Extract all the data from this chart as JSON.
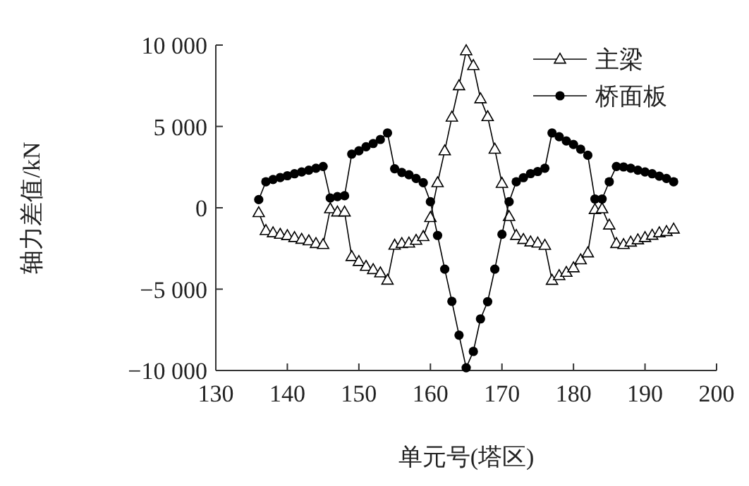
{
  "chart_data": {
    "type": "line",
    "xlabel": "单元号(塔区)",
    "ylabel": "轴力差值/kN",
    "xlim": [
      130,
      200
    ],
    "xticks": [
      130,
      140,
      150,
      160,
      170,
      180,
      190,
      200
    ],
    "ylim": [
      -10000,
      10000
    ],
    "yticks": [
      {
        "value": -10000,
        "label": "−10 000"
      },
      {
        "value": -5000,
        "label": "−5 000"
      },
      {
        "value": 0,
        "label": "0"
      },
      {
        "value": 5000,
        "label": "5 000"
      },
      {
        "value": 10000,
        "label": "10 000"
      }
    ],
    "grid": false,
    "legend": "top right",
    "x": [
      136,
      137,
      138,
      139,
      140,
      141,
      142,
      143,
      144,
      145,
      146,
      147,
      148,
      149,
      150,
      151,
      152,
      153,
      154,
      155,
      156,
      157,
      158,
      159,
      160,
      161,
      162,
      163,
      164,
      165,
      166,
      167,
      168,
      169,
      170,
      171,
      172,
      173,
      174,
      175,
      176,
      177,
      178,
      179,
      180,
      181,
      182,
      183,
      184,
      185,
      186,
      187,
      188,
      189,
      190,
      191,
      192,
      193,
      194
    ],
    "series": [
      {
        "name": "主梁",
        "color": "#000000",
        "marker": "triangle",
        "values": [
          -300,
          -1400,
          -1540,
          -1630,
          -1710,
          -1830,
          -1940,
          -2030,
          -2200,
          -2260,
          -60,
          -260,
          -260,
          -3000,
          -3300,
          -3600,
          -3800,
          -4000,
          -4450,
          -2300,
          -2200,
          -2170,
          -2000,
          -1770,
          -600,
          1540,
          3500,
          5570,
          7500,
          9650,
          8740,
          6700,
          5600,
          3600,
          1500,
          -540,
          -1700,
          -1950,
          -2100,
          -2170,
          -2310,
          -4460,
          -4170,
          -3970,
          -3690,
          -3200,
          -2770,
          -110,
          -60,
          -1060,
          -2200,
          -2260,
          -2110,
          -1970,
          -1830,
          -1690,
          -1540,
          -1460,
          -1310
        ]
      },
      {
        "name": "桥面板",
        "color": "#000000",
        "marker": "circle",
        "values": [
          500,
          1600,
          1740,
          1860,
          1970,
          2090,
          2200,
          2310,
          2430,
          2540,
          600,
          690,
          740,
          3300,
          3500,
          3750,
          3950,
          4200,
          4600,
          2400,
          2170,
          2030,
          1800,
          1540,
          370,
          -1700,
          -3770,
          -5750,
          -7830,
          -9830,
          -8830,
          -6830,
          -5770,
          -3770,
          -1630,
          370,
          1600,
          1850,
          2100,
          2230,
          2430,
          4600,
          4370,
          4110,
          3890,
          3600,
          3230,
          540,
          540,
          1600,
          2540,
          2510,
          2430,
          2310,
          2200,
          2090,
          1940,
          1800,
          1600
        ]
      }
    ]
  }
}
